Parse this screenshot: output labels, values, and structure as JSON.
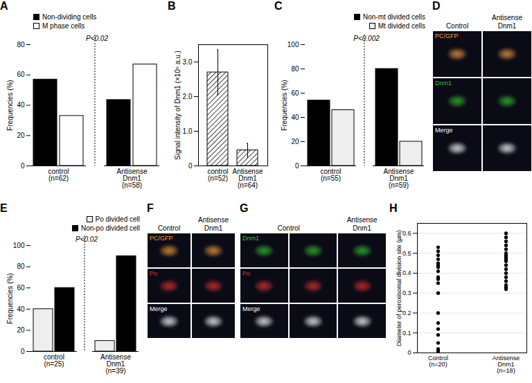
{
  "chart_data": [
    {
      "panel": "A",
      "type": "bar",
      "ylabel": "Frequencies (%)",
      "categories": [
        "control\n(n=62)",
        "Antisense\nDnm1\n(n=58)"
      ],
      "series": [
        {
          "name": "Non-dividing cells",
          "color": "#000000",
          "values": [
            57,
            43.5
          ]
        },
        {
          "name": "M phase cells",
          "color": "#ffffff",
          "values": [
            33,
            67
          ]
        }
      ],
      "ylim": [
        0,
        80
      ],
      "yticks": [
        0,
        20,
        40,
        60,
        80
      ],
      "legend": "top-left",
      "annotation": "P<0.02"
    },
    {
      "panel": "B",
      "type": "bar",
      "ylabel": "Signal intensity of Dnm1 (×10⁵ a.u.)",
      "categories": [
        "control\n(n=52)",
        "Antisense\nDnm1\n(n=64)"
      ],
      "values": [
        2.7,
        0.45
      ],
      "errors": [
        0.65,
        0.2
      ],
      "color": "#000000",
      "ylim": [
        0,
        3.5
      ],
      "yticks": [
        0,
        {
          "value": 1,
          "label": "1.0"
        },
        {
          "value": 2,
          "label": "2.0"
        },
        {
          "value": 3,
          "label": "3.0"
        }
      ]
    },
    {
      "panel": "C",
      "type": "bar",
      "ylabel": "Frequencies (%)",
      "categories": [
        "control\n(n=55)",
        "Antisense\nDnm1\n(n=59)"
      ],
      "series": [
        {
          "name": "Non-mt divided cells",
          "color": "#000000",
          "values": [
            54,
            80
          ]
        },
        {
          "name": "Mt divided cells",
          "color": "#eeeeee",
          "values": [
            46,
            20
          ]
        }
      ],
      "ylim": [
        0,
        100
      ],
      "yticks": [
        0,
        20,
        40,
        60,
        80,
        100
      ],
      "legend": "top-right",
      "annotation": "P<0.002"
    },
    {
      "panel": "E",
      "type": "bar",
      "ylabel": "Frequencies (%)",
      "categories": [
        "control\n(n=25)",
        "Antisense\nDnm1\n(n=39)"
      ],
      "series": [
        {
          "name": "Po divided cell",
          "color": "#eeeeee",
          "values": [
            40,
            10
          ]
        },
        {
          "name": "Non-po divided cell",
          "color": "#000000",
          "values": [
            60,
            90
          ]
        }
      ],
      "ylim": [
        0,
        100
      ],
      "yticks": [
        0,
        20,
        40,
        60,
        80,
        100
      ],
      "legend": "top-right",
      "annotation": "P<0.02"
    },
    {
      "panel": "H",
      "type": "scatter",
      "ylabel": "Diameter of peroxisomal division site (µm)",
      "categories": [
        "Control\n(n=20)",
        "Antisense\nDnm1\n(n=18)"
      ],
      "values": [
        [
          0.53,
          0.51,
          0.49,
          0.47,
          0.45,
          0.44,
          0.43,
          0.41,
          0.38,
          0.37,
          0.35,
          0.3,
          0.2,
          0.15,
          0.12,
          0.09,
          0.05,
          0.02,
          0.01,
          0.0
        ],
        [
          0.6,
          0.58,
          0.56,
          0.54,
          0.52,
          0.5,
          0.49,
          0.48,
          0.47,
          0.46,
          0.44,
          0.42,
          0.4,
          0.38,
          0.36,
          0.34,
          0.33,
          0.32
        ]
      ],
      "color": "#000000",
      "marker": "circle",
      "grid": true,
      "ylim": [
        0,
        0.65
      ],
      "yticks": [
        0,
        0.1,
        0.2,
        0.3,
        0.4,
        0.5,
        0.6
      ]
    }
  ],
  "images": [
    {
      "panel": "D",
      "columns": [
        {
          "label": "Control",
          "span": 1
        },
        {
          "label": "Antisense\nDnm1",
          "span": 1
        }
      ],
      "rows": [
        {
          "label": "PC/GFP",
          "color": "#f0a040"
        },
        {
          "label": "Dnm1",
          "color": "#30c030"
        },
        {
          "label": "Merge",
          "color": "#ffffff"
        }
      ]
    },
    {
      "panel": "F",
      "columns": [
        {
          "label": "Control",
          "span": 1
        },
        {
          "label": "Antisense\nDnm1",
          "span": 1
        }
      ],
      "rows": [
        {
          "label": "PC/GFP",
          "color": "#f0a040"
        },
        {
          "label": "Po",
          "color": "#e03030"
        },
        {
          "label": "Merge",
          "color": "#ffffff"
        }
      ]
    },
    {
      "panel": "G",
      "columns": [
        {
          "label": "Control",
          "span": 2
        },
        {
          "label": "Antisense\nDnm1",
          "span": 1
        }
      ],
      "rows": [
        {
          "label": "Dnm1",
          "color": "#30c030"
        },
        {
          "label": "Po",
          "color": "#e03030"
        },
        {
          "label": "Merge",
          "color": "#ffffff"
        }
      ]
    }
  ]
}
